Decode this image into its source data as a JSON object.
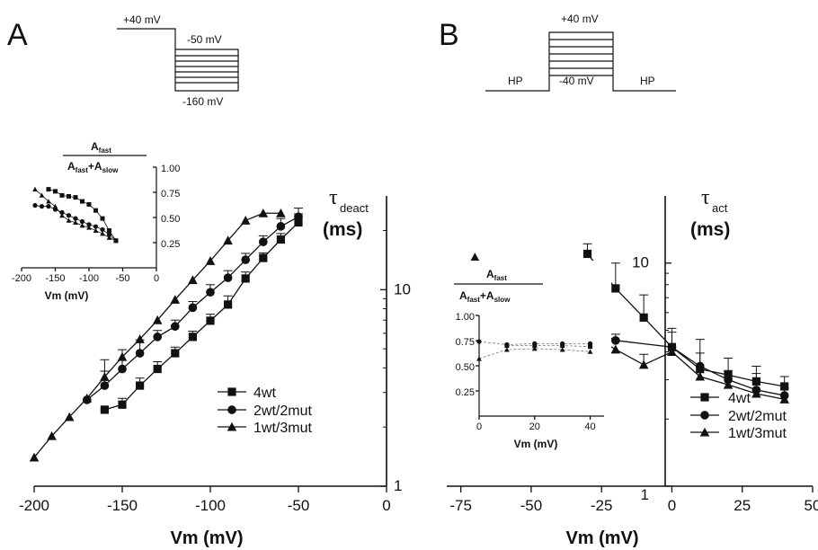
{
  "panels": [
    {
      "letter": "A"
    },
    {
      "letter": "B"
    }
  ],
  "protocols": {
    "A": {
      "pre_label": "+40 mV",
      "step_label": "-50 mV",
      "step_low_label": "-160 mV"
    },
    "B": {
      "hp_left": "HP",
      "top_label": "+40 mV",
      "base_label": "-40 mV",
      "hp_right": "HP"
    }
  },
  "chart_data": [
    {
      "id": "A-main",
      "type": "line",
      "xlabel": "Vm (mV)",
      "ylabel": "τdeact (ms)",
      "ylabel_symbol": "τ",
      "ylabel_sub": "deact",
      "ylabel_unit": "(ms)",
      "xlim": [
        -200,
        0
      ],
      "ylim": [
        1,
        30
      ],
      "yscale": "log",
      "xticks": [
        -200,
        -150,
        -100,
        -50,
        0
      ],
      "xtick_labels": [
        "-200",
        "-150",
        "-100",
        "-50",
        "0"
      ],
      "yticks": [
        1,
        10
      ],
      "ytick_labels": [
        "1",
        "10"
      ],
      "y_axis_position": "right",
      "legend_position": "lower-right",
      "series": [
        {
          "name": "4wt",
          "marker": "square",
          "x": [
            -160,
            -150,
            -140,
            -130,
            -120,
            -110,
            -100,
            -90,
            -80,
            -70,
            -60,
            -50
          ],
          "y": [
            2.45,
            2.6,
            3.25,
            3.95,
            4.75,
            5.75,
            6.95,
            8.4,
            11.4,
            14.5,
            18.0,
            22.0
          ],
          "err": [
            0,
            0.2,
            0.3,
            0.35,
            0.35,
            0.4,
            0.55,
            0.9,
            0.9,
            0.9,
            1.3,
            2.3
          ]
        },
        {
          "name": "2wt/2mut",
          "marker": "circle",
          "x": [
            -170,
            -160,
            -150,
            -140,
            -130,
            -120,
            -110,
            -100,
            -90,
            -80,
            -70,
            -60,
            -50
          ],
          "y": [
            2.75,
            3.25,
            3.95,
            4.75,
            5.75,
            6.5,
            8.1,
            9.7,
            11.5,
            14.2,
            17.5,
            21.0,
            23.5
          ],
          "err": [
            0,
            0.6,
            1.0,
            0.8,
            0.45,
            0.5,
            0.6,
            0.9,
            1.0,
            1.1,
            1.3,
            2.0,
            2.5
          ]
        },
        {
          "name": "1wt/3mut",
          "marker": "triangle",
          "x": [
            -200,
            -190,
            -180,
            -170,
            -160,
            -150,
            -140,
            -130,
            -120,
            -110,
            -100,
            -90,
            -80,
            -70,
            -60
          ],
          "y": [
            1.4,
            1.8,
            2.25,
            2.8,
            3.6,
            4.55,
            5.6,
            7.0,
            8.9,
            11.2,
            14.0,
            17.8,
            22.5,
            24.5,
            24.5
          ],
          "err": [
            0,
            0,
            0,
            0,
            0.8,
            0,
            0,
            0,
            0,
            0,
            0,
            0,
            0,
            0,
            0
          ]
        }
      ]
    },
    {
      "id": "A-inset",
      "type": "line",
      "xlabel": "Vm (mV)",
      "ylabel": "Afast / (Afast+Aslow)",
      "frac_num": "A",
      "frac_num_sub": "fast",
      "frac_den_a": "A",
      "frac_den_a_sub": "fast",
      "frac_den_b": "+A",
      "frac_den_b_sub": "slow",
      "xlim": [
        -200,
        0
      ],
      "ylim": [
        0,
        1.0
      ],
      "xticks": [
        -200,
        -150,
        -100,
        -50,
        0
      ],
      "xtick_labels": [
        "-200",
        "-150",
        "-100",
        "-50",
        "0"
      ],
      "yticks": [
        0.25,
        0.5,
        0.75,
        1.0
      ],
      "ytick_labels": [
        "0.25",
        "0.50",
        "0.75",
        "1.00"
      ],
      "y_axis_position": "right",
      "series": [
        {
          "name": "4wt",
          "marker": "square",
          "x": [
            -160,
            -150,
            -140,
            -130,
            -120,
            -110,
            -100,
            -90,
            -80,
            -70,
            -60
          ],
          "y": [
            0.78,
            0.76,
            0.72,
            0.71,
            0.7,
            0.66,
            0.63,
            0.57,
            0.49,
            0.37,
            0.27
          ]
        },
        {
          "name": "2wt/2mut",
          "marker": "circle",
          "x": [
            -180,
            -170,
            -160,
            -150,
            -140,
            -130,
            -120,
            -110,
            -100,
            -90,
            -80,
            -70,
            -60
          ],
          "y": [
            0.62,
            0.61,
            0.61,
            0.58,
            0.55,
            0.52,
            0.49,
            0.46,
            0.43,
            0.41,
            0.38,
            0.33,
            0.27
          ]
        },
        {
          "name": "1wt/3mut",
          "marker": "triangle",
          "x": [
            -180,
            -170,
            -160,
            -150,
            -140,
            -130,
            -120,
            -110,
            -100,
            -90,
            -80,
            -70,
            -60
          ],
          "y": [
            0.78,
            0.72,
            0.66,
            0.61,
            0.52,
            0.47,
            0.45,
            0.42,
            0.4,
            0.37,
            0.34,
            0.3,
            0.27
          ]
        }
      ]
    },
    {
      "id": "B-main",
      "type": "line",
      "xlabel": "Vm (mV)",
      "ylabel": "τact (ms)",
      "ylabel_symbol": "τ",
      "ylabel_sub": "act",
      "ylabel_unit": "(ms)",
      "xlim": [
        -80,
        50
      ],
      "ylim": [
        1,
        20
      ],
      "yscale": "log",
      "xticks": [
        -75,
        -50,
        -25,
        0,
        25,
        50
      ],
      "xtick_labels": [
        "-75",
        "-50",
        "-25",
        "0",
        "25",
        "50"
      ],
      "yticks": [
        1,
        10
      ],
      "ytick_labels": [
        "1",
        "10"
      ],
      "y_axis_position": "x=0",
      "legend_position": "lower-right",
      "series": [
        {
          "name": "4wt",
          "marker": "square",
          "x": [
            -30,
            -20,
            -10,
            0,
            10,
            20,
            30,
            40
          ],
          "y": [
            11.0,
            7.7,
            5.7,
            4.2,
            3.35,
            3.15,
            2.95,
            2.8
          ],
          "err": [
            1.2,
            2.3,
            1.5,
            0.9,
            1.2,
            0.6,
            0.5,
            0.3
          ]
        },
        {
          "name": "2wt/2mut",
          "marker": "circle",
          "x": [
            -50,
            -40,
            -30,
            -20,
            0,
            10,
            20,
            30,
            40
          ],
          "y": [
            9.8,
            7.2,
            5.2,
            4.5,
            4.2,
            3.45,
            3.0,
            2.7,
            2.55
          ],
          "err": [
            0,
            0.4,
            0.5,
            0.3,
            0.7,
            0.5,
            0.3,
            0.5,
            0.2
          ]
        },
        {
          "name": "1wt/3mut",
          "marker": "triangle",
          "x": [
            -70,
            -60,
            -50,
            -40,
            -30,
            -20,
            -10,
            0,
            10,
            20,
            30,
            40
          ],
          "y": [
            10.6,
            8.4,
            6.7,
            5.4,
            4.9,
            4.1,
            3.5,
            4.0,
            3.1,
            2.85,
            2.6,
            2.45
          ],
          "err": [
            0,
            0,
            0,
            0,
            0,
            0,
            0.4,
            0,
            0,
            0,
            0,
            0
          ]
        }
      ]
    },
    {
      "id": "B-inset",
      "type": "line",
      "xlabel": "Vm (mV)",
      "ylabel": "Afast / (Afast+Aslow)",
      "frac_num": "A",
      "frac_num_sub": "fast",
      "frac_den_a": "A",
      "frac_den_a_sub": "fast",
      "frac_den_b": "+A",
      "frac_den_b_sub": "slow",
      "xlim": [
        0,
        45
      ],
      "ylim": [
        0,
        1.0
      ],
      "xticks": [
        0,
        20,
        40
      ],
      "xtick_labels": [
        "0",
        "20",
        "40"
      ],
      "yticks": [
        0.25,
        0.5,
        0.75,
        1.0
      ],
      "ytick_labels": [
        "0.25",
        "0.50",
        "0.75",
        "1.00"
      ],
      "y_axis_position": "left",
      "series": [
        {
          "name": "4wt",
          "marker": "square",
          "x": [
            10,
            20,
            30,
            40
          ],
          "y": [
            0.7,
            0.7,
            0.7,
            0.69
          ]
        },
        {
          "name": "2wt/2mut",
          "marker": "circle",
          "x": [
            0,
            10,
            20,
            30,
            40
          ],
          "y": [
            0.74,
            0.71,
            0.72,
            0.72,
            0.72
          ]
        },
        {
          "name": "1wt/3mut",
          "marker": "triangle",
          "x": [
            0,
            10,
            20,
            30,
            40
          ],
          "y": [
            0.57,
            0.66,
            0.67,
            0.66,
            0.64
          ]
        }
      ]
    }
  ]
}
